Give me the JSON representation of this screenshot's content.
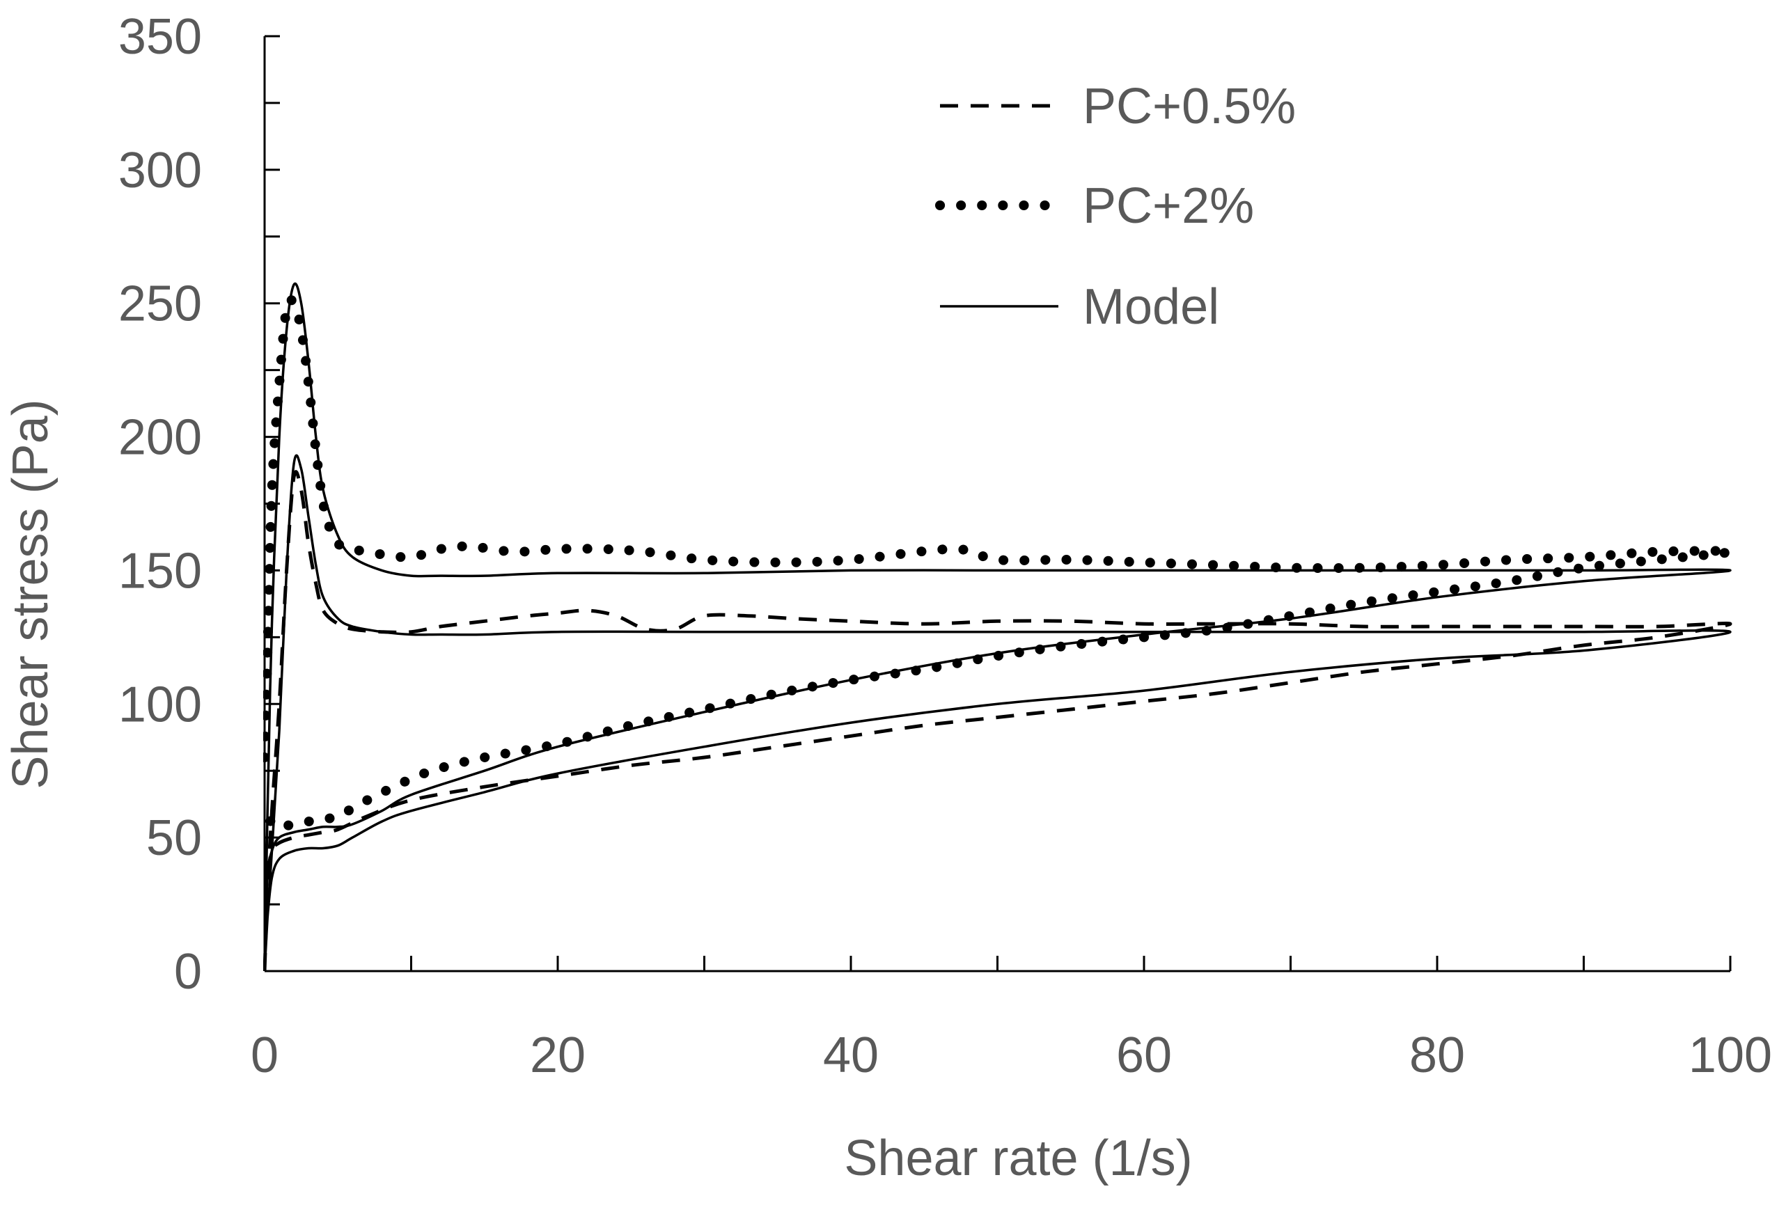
{
  "chart_data": {
    "type": "line",
    "title": "",
    "xlabel": "Shear rate (1/s)",
    "ylabel": "Shear stress (Pa)",
    "xlim": [
      0,
      100
    ],
    "ylim": [
      0,
      350
    ],
    "x_ticks": [
      0,
      20,
      40,
      60,
      80,
      100
    ],
    "x_tick_labels": [
      "0",
      "20",
      "40",
      "60",
      "80",
      "100"
    ],
    "y_ticks": [
      0,
      50,
      100,
      150,
      200,
      250,
      300,
      350
    ],
    "y_tick_labels": [
      "0",
      "50",
      "100",
      "150",
      "200",
      "250",
      "300",
      "350"
    ],
    "x_minor_step": 10,
    "y_minor_step": 25,
    "grid": false,
    "legend_position": "top-right",
    "legend": [
      {
        "name": "PC+0.5%",
        "style": "dashed"
      },
      {
        "name": "PC+2%",
        "style": "dotted"
      },
      {
        "name": "Model",
        "style": "solid"
      }
    ],
    "line_color": "#000000",
    "axis_color": "#000000",
    "text_color": "#595959",
    "series": [
      {
        "name": "PC+0.5%",
        "style": "dashed",
        "x": [
          0,
          0.2,
          0.5,
          1,
          1.5,
          2,
          2.5,
          3,
          3.5,
          4,
          5,
          6,
          8,
          10,
          12,
          15,
          18,
          20,
          22,
          24,
          26,
          28,
          30,
          33,
          36,
          40,
          45,
          50,
          55,
          60,
          65,
          70,
          75,
          80,
          85,
          90,
          95,
          100,
          95,
          90,
          85,
          80,
          75,
          70,
          65,
          60,
          55,
          50,
          45,
          40,
          35,
          30,
          25,
          20,
          15,
          10,
          7,
          5,
          4,
          3,
          2,
          1,
          0.5,
          0.2,
          0
        ],
        "y": [
          0,
          30,
          60,
          100,
          150,
          185,
          180,
          160,
          145,
          135,
          130,
          128,
          127,
          127,
          129,
          131,
          133,
          134,
          135,
          133,
          128,
          128,
          133,
          133,
          132,
          131,
          130,
          131,
          131,
          130,
          130,
          130,
          129,
          129,
          129,
          129,
          129,
          130,
          125,
          122,
          118,
          115,
          112,
          108,
          104,
          101,
          98,
          95,
          92,
          88,
          84,
          80,
          77,
          73,
          69,
          64,
          58,
          53,
          52,
          51,
          50,
          48,
          45,
          35,
          20
        ]
      },
      {
        "name": "PC+2%",
        "style": "dotted",
        "x": [
          0,
          0.2,
          0.5,
          1,
          1.5,
          2,
          2.5,
          3,
          3.5,
          4,
          4.5,
          5,
          6,
          8,
          10,
          12,
          14,
          17,
          20,
          23,
          26,
          30,
          35,
          40,
          47,
          50,
          55,
          60,
          65,
          70,
          75,
          80,
          85,
          90,
          95,
          100,
          95,
          90,
          85,
          80,
          75,
          70,
          65,
          60,
          55,
          50,
          45,
          40,
          35,
          30,
          25,
          20,
          15,
          12,
          10,
          7,
          5,
          4,
          3,
          2,
          1,
          0.5,
          0.2
        ],
        "y": [
          80,
          120,
          180,
          220,
          248,
          250,
          240,
          220,
          195,
          175,
          165,
          160,
          158,
          156,
          155,
          158,
          159,
          157,
          158,
          158,
          157,
          154,
          153,
          154,
          158,
          154,
          154,
          153,
          152,
          151,
          151,
          152,
          154,
          155,
          157,
          157,
          154,
          151,
          146,
          142,
          138,
          133,
          128,
          125,
          122,
          118,
          113,
          109,
          104,
          98,
          92,
          85,
          80,
          76,
          72,
          64,
          58,
          57,
          56,
          55,
          54,
          55,
          60
        ]
      },
      {
        "name": "Model (PC+0.5%)",
        "style": "solid",
        "x": [
          0,
          0.2,
          0.5,
          1,
          1.5,
          2,
          2.5,
          3,
          3.5,
          4,
          5,
          6,
          8,
          10,
          12,
          15,
          20,
          30,
          40,
          50,
          60,
          70,
          80,
          90,
          100,
          90,
          80,
          70,
          60,
          50,
          40,
          30,
          20,
          15,
          10,
          8,
          6,
          5,
          4,
          3,
          2,
          1,
          0.5,
          0.2,
          0
        ],
        "y": [
          0,
          20,
          45,
          90,
          150,
          190,
          188,
          170,
          152,
          140,
          132,
          129,
          127,
          126,
          126,
          126,
          127,
          127,
          127,
          127,
          127,
          127,
          127,
          127,
          127,
          120,
          117,
          112,
          105,
          100,
          93,
          84,
          74,
          67,
          60,
          56,
          50,
          47,
          46,
          46,
          45,
          42,
          35,
          20,
          0
        ]
      },
      {
        "name": "Model (PC+2%)",
        "style": "solid",
        "x": [
          0,
          0.2,
          0.5,
          1,
          1.5,
          2,
          2.5,
          3,
          3.5,
          4,
          5,
          6,
          8,
          10,
          12,
          15,
          20,
          30,
          40,
          50,
          60,
          70,
          80,
          90,
          100,
          90,
          80,
          70,
          60,
          50,
          40,
          30,
          20,
          15,
          10,
          8,
          6,
          5,
          4,
          3,
          2,
          1,
          0.5,
          0.2,
          0
        ],
        "y": [
          0,
          60,
          130,
          200,
          240,
          257,
          250,
          228,
          200,
          180,
          163,
          155,
          150,
          148,
          148,
          148,
          149,
          149,
          150,
          150,
          150,
          150,
          150,
          150,
          150,
          146,
          140,
          132,
          126,
          119,
          109,
          97,
          84,
          75,
          66,
          60,
          55,
          54,
          54,
          53,
          52,
          50,
          45,
          35,
          0
        ]
      }
    ]
  }
}
